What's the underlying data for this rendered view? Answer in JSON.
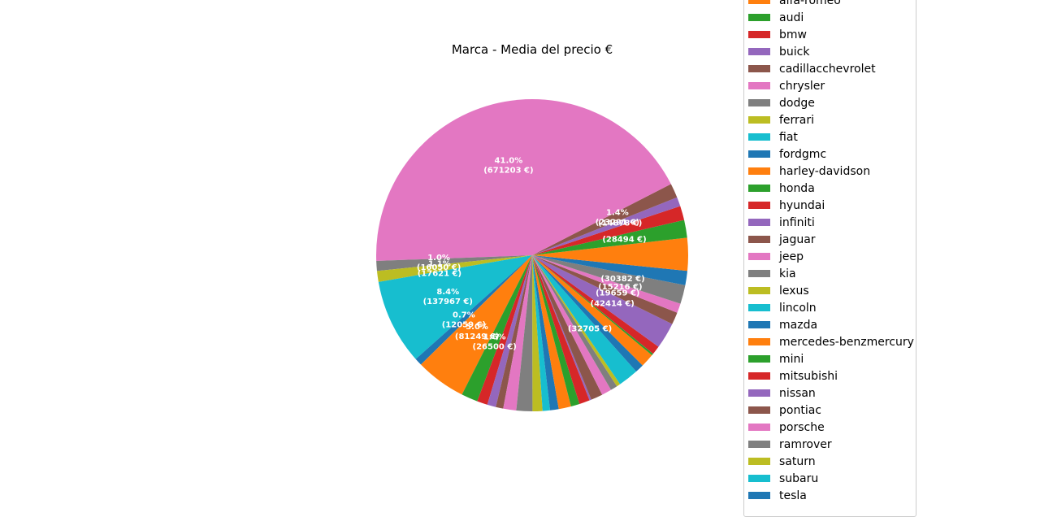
{
  "chart_data": {
    "type": "pie",
    "title": "Marca - Media del precio €",
    "legend_position": "right",
    "slices": [
      {
        "name": "alfa-romeo",
        "value": 28000,
        "color": "#ff7f0e",
        "pct": "",
        "amount": ""
      },
      {
        "name": "audi",
        "value": 28494,
        "color": "#2ca02c",
        "pct": "",
        "amount": "(28494 €)"
      },
      {
        "name": "bmw",
        "value": 23000,
        "color": "#d62728",
        "pct": "",
        "amount": ""
      },
      {
        "name": "buick",
        "value": 14878,
        "color": "#9467bd",
        "pct": "",
        "amount": "(14878 €)"
      },
      {
        "name": "cadillacchevrolet",
        "value": 23291,
        "color": "#8c564b",
        "pct": "1.4%",
        "amount": "(23291 €)"
      },
      {
        "name": "chrysler",
        "value": 671203,
        "color": "#e377c2",
        "pct": "41.0%",
        "amount": "(671203 €)"
      },
      {
        "name": "dodge",
        "value": 16050,
        "color": "#7f7f7f",
        "pct": "1.0%",
        "amount": "(16050 €)"
      },
      {
        "name": "ferrari",
        "value": 17621,
        "color": "#bcbd22",
        "pct": "1.1%",
        "amount": "(17621 €)"
      },
      {
        "name": "fiat",
        "value": 137967,
        "color": "#17becf",
        "pct": "8.4%",
        "amount": "(137967 €)"
      },
      {
        "name": "fordgmc",
        "value": 12059,
        "color": "#1f77b4",
        "pct": "0.7%",
        "amount": "(12059 €)"
      },
      {
        "name": "harley-davidson",
        "value": 81249,
        "color": "#ff7f0e",
        "pct": "5.0%",
        "amount": "(81249 €)"
      },
      {
        "name": "honda",
        "value": 26500,
        "color": "#2ca02c",
        "pct": "1.6%",
        "amount": "(26500 €)"
      },
      {
        "name": "hyundai",
        "value": 17000,
        "color": "#d62728",
        "pct": "",
        "amount": ""
      },
      {
        "name": "infiniti",
        "value": 14000,
        "color": "#9467bd",
        "pct": "",
        "amount": ""
      },
      {
        "name": "jaguar",
        "value": 12000,
        "color": "#8c564b",
        "pct": "",
        "amount": ""
      },
      {
        "name": "jeep",
        "value": 21000,
        "color": "#e377c2",
        "pct": "",
        "amount": ""
      },
      {
        "name": "kia",
        "value": 26000,
        "color": "#7f7f7f",
        "pct": "",
        "amount": ""
      },
      {
        "name": "lexus",
        "value": 16000,
        "color": "#bcbd22",
        "pct": "",
        "amount": ""
      },
      {
        "name": "lincoln",
        "value": 12000,
        "color": "#17becf",
        "pct": "",
        "amount": ""
      },
      {
        "name": "mazda",
        "value": 14000,
        "color": "#1f77b4",
        "pct": "",
        "amount": ""
      },
      {
        "name": "mercedes-benzmercury",
        "value": 20000,
        "color": "#ff7f0e",
        "pct": "",
        "amount": ""
      },
      {
        "name": "mini",
        "value": 14000,
        "color": "#2ca02c",
        "pct": "",
        "amount": ""
      },
      {
        "name": "mitsubishi",
        "value": 17000,
        "color": "#d62728",
        "pct": "",
        "amount": ""
      },
      {
        "name": "nissan",
        "value": 3000,
        "color": "#9467bd",
        "pct": "",
        "amount": ""
      },
      {
        "name": "pontiac",
        "value": 19000,
        "color": "#8c564b",
        "pct": "",
        "amount": ""
      },
      {
        "name": "porsche",
        "value": 16000,
        "color": "#e377c2",
        "pct": "",
        "amount": ""
      },
      {
        "name": "ramrover",
        "value": 11000,
        "color": "#7f7f7f",
        "pct": "",
        "amount": ""
      },
      {
        "name": "saturn",
        "value": 6000,
        "color": "#bcbd22",
        "pct": "",
        "amount": ""
      },
      {
        "name": "subaru",
        "value": 32705,
        "color": "#17becf",
        "pct": "",
        "amount": "(32705 €)"
      },
      {
        "name": "tesla",
        "value": 14000,
        "color": "#1f77b4",
        "pct": "",
        "amount": ""
      },
      {
        "name": "",
        "value": 22000,
        "color": "#ff7f0e",
        "pct": "",
        "amount": ""
      },
      {
        "name": "",
        "value": 3000,
        "color": "#2ca02c",
        "pct": "",
        "amount": ""
      },
      {
        "name": "",
        "value": 14000,
        "color": "#d62728",
        "pct": "",
        "amount": ""
      },
      {
        "name": "",
        "value": 42414,
        "color": "#9467bd",
        "pct": "",
        "amount": "(42414 €)"
      },
      {
        "name": "",
        "value": 19659,
        "color": "#8c564b",
        "pct": "",
        "amount": "(19659 €)"
      },
      {
        "name": "",
        "value": 15216,
        "color": "#e377c2",
        "pct": "",
        "amount": "(15216 €)"
      },
      {
        "name": "",
        "value": 30382,
        "color": "#7f7f7f",
        "pct": "",
        "amount": "(30382 €)"
      },
      {
        "name": "",
        "value": 23000,
        "color": "#1f77b4",
        "pct": "",
        "amount": ""
      },
      {
        "name": "",
        "value": 25000,
        "color": "#ff7f0e",
        "pct": "",
        "amount": ""
      }
    ]
  }
}
